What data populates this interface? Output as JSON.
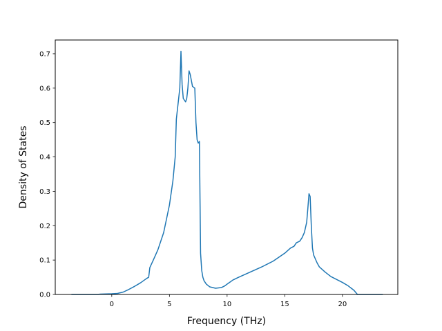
{
  "chart_data": {
    "type": "line",
    "title": "",
    "xlabel": "Frequency (THz)",
    "ylabel": "Density of States",
    "xlim": [
      -4.9,
      24.8
    ],
    "ylim": [
      0,
      0.74
    ],
    "xticks": [
      0,
      5,
      10,
      15,
      20
    ],
    "xtick_labels": [
      "0",
      "5",
      "10",
      "15",
      "20"
    ],
    "yticks": [
      0.0,
      0.1,
      0.2,
      0.3,
      0.4,
      0.5,
      0.6,
      0.7
    ],
    "ytick_labels": [
      "0.0",
      "0.1",
      "0.2",
      "0.3",
      "0.4",
      "0.5",
      "0.6",
      "0.7"
    ],
    "grid": false,
    "line_color": "#1f77b4",
    "series": [
      {
        "x": [
          -3.5,
          -1.2,
          -1.0,
          0.0,
          0.5,
          1.0,
          1.5,
          2.0,
          2.5,
          3.0,
          3.2,
          3.3,
          3.6,
          4.0,
          4.5,
          5.0,
          5.3,
          5.5,
          5.6,
          5.7,
          5.9,
          6.0,
          6.1,
          6.2,
          6.4,
          6.5,
          6.6,
          6.7,
          6.8,
          7.0,
          7.2,
          7.3,
          7.4,
          7.5,
          7.6,
          7.7,
          7.8,
          7.9,
          8.0,
          8.2,
          8.5,
          9.0,
          9.5,
          9.8,
          10.0,
          10.3,
          10.5,
          11.0,
          12.0,
          13.0,
          14.0,
          15.0,
          15.5,
          15.8,
          16.0,
          16.3,
          16.5,
          16.7,
          16.9,
          17.0,
          17.1,
          17.2,
          17.3,
          17.4,
          17.5,
          17.8,
          18.0,
          18.5,
          19.0,
          20.0,
          20.5,
          21.0,
          21.3,
          21.4,
          22.0,
          23.5
        ],
        "y": [
          0.0,
          0.0,
          0.001,
          0.002,
          0.003,
          0.007,
          0.015,
          0.024,
          0.034,
          0.046,
          0.05,
          0.078,
          0.1,
          0.13,
          0.18,
          0.26,
          0.33,
          0.4,
          0.51,
          0.54,
          0.6,
          0.707,
          0.61,
          0.57,
          0.56,
          0.57,
          0.6,
          0.65,
          0.64,
          0.605,
          0.6,
          0.5,
          0.45,
          0.44,
          0.445,
          0.12,
          0.07,
          0.05,
          0.04,
          0.03,
          0.022,
          0.018,
          0.02,
          0.025,
          0.03,
          0.037,
          0.042,
          0.05,
          0.065,
          0.08,
          0.097,
          0.12,
          0.135,
          0.14,
          0.15,
          0.155,
          0.165,
          0.18,
          0.21,
          0.25,
          0.293,
          0.285,
          0.2,
          0.135,
          0.115,
          0.092,
          0.08,
          0.065,
          0.052,
          0.035,
          0.025,
          0.012,
          0.0,
          0.0,
          0.0,
          0.0
        ]
      }
    ]
  }
}
